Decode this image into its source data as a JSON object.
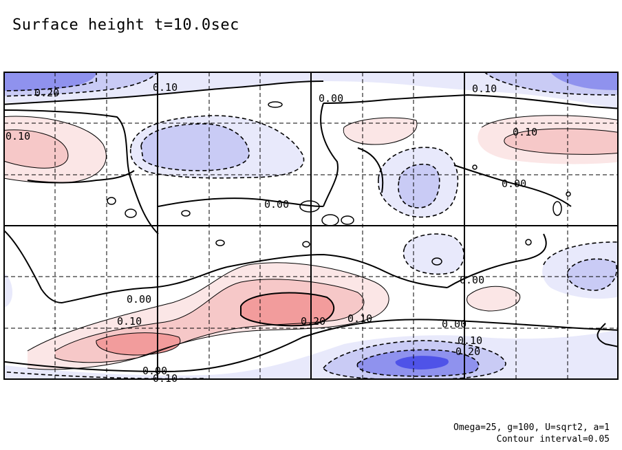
{
  "chart_data": {
    "type": "contour",
    "title": "Surface height t=10.0sec",
    "footnote_params": "Omega=25, g=100, U=sqrt2, a=1",
    "footnote_interval": "Contour interval=0.05",
    "contour_interval": 0.05,
    "grid": true,
    "colors": {
      "positive_light": "#fbe6e6",
      "positive_mid": "#f6c8c8",
      "positive_strong": "#f29c9c",
      "negative_light": "#e8e9fb",
      "negative_mid": "#c9cbf5",
      "negative_strong": "#8f92ee",
      "negative_core": "#4f53e8"
    },
    "labels": [
      "0.20",
      "0.10",
      "0.10",
      "0.00",
      "0.10",
      "0.10",
      "0.00",
      "0.00",
      "0.00",
      "0.10",
      "0.20",
      "0.10",
      "0.00",
      "0.00",
      "0.10",
      "0.20",
      "0.00",
      "0.10"
    ]
  }
}
